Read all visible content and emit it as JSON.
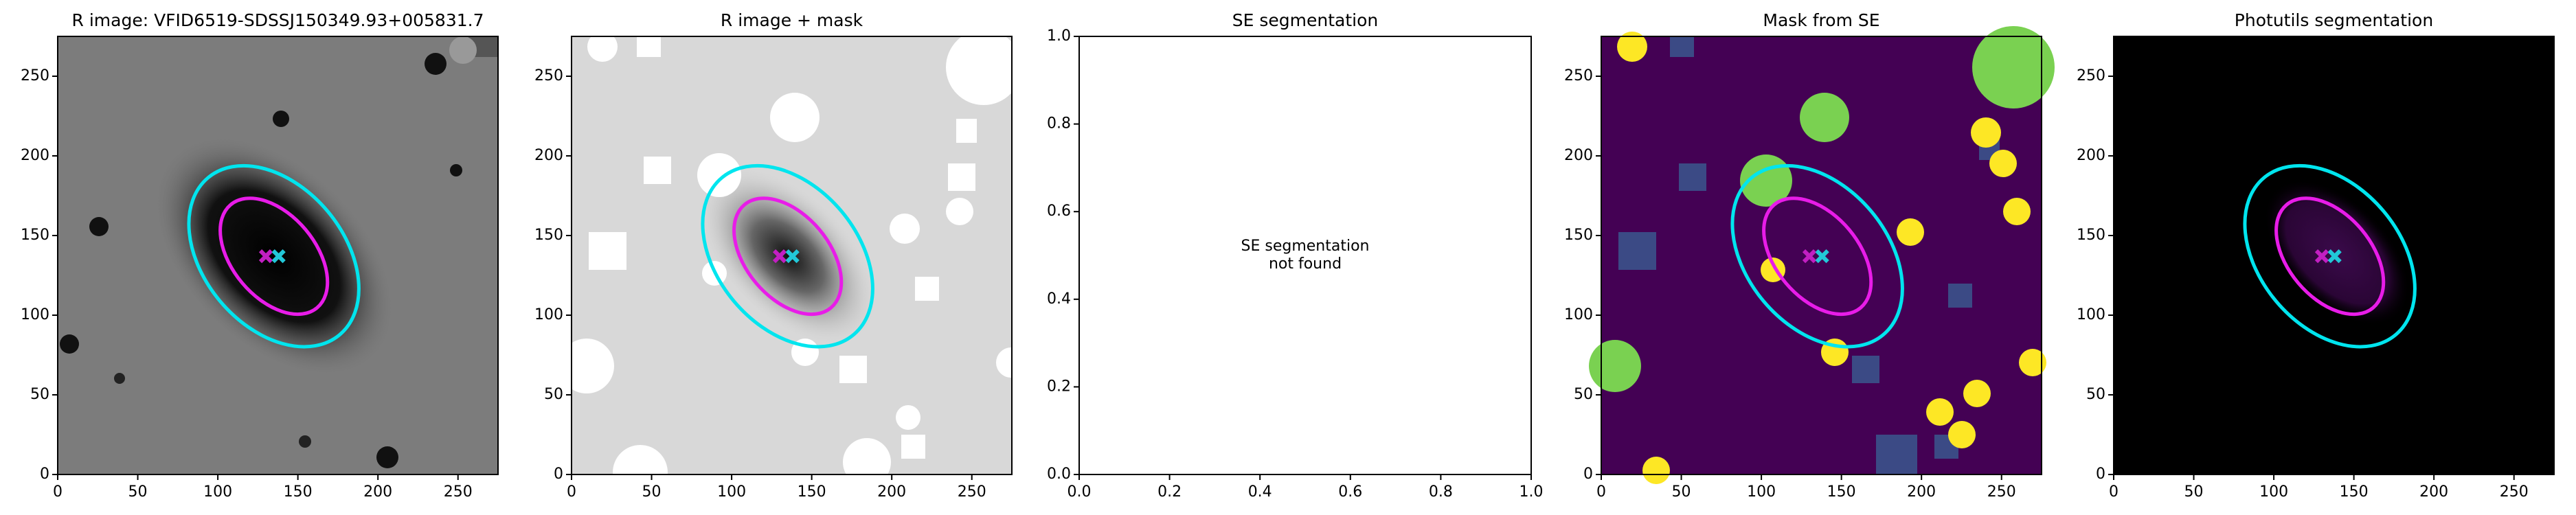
{
  "chart_data": [
    {
      "type": "image",
      "title": "R image: VFID6519-SDSSJ150349.93+005831.7",
      "xlim": [
        0,
        275
      ],
      "ylim": [
        0,
        275
      ],
      "xticks": [
        0,
        50,
        100,
        150,
        200,
        250
      ],
      "yticks": [
        0,
        50,
        100,
        150,
        200,
        250
      ],
      "ellipses": [
        {
          "x": 135,
          "y": 137,
          "semi_major": 64,
          "semi_minor": 44,
          "angle": -50,
          "color": "#00e5ee"
        },
        {
          "x": 135,
          "y": 137,
          "semi_major": 42,
          "semi_minor": 26,
          "angle": -50,
          "color": "#e81ce8"
        }
      ],
      "markers": [
        {
          "x": 130,
          "y": 137,
          "color": "#c21fc2"
        },
        {
          "x": 138,
          "y": 137,
          "color": "#22c8d8"
        }
      ]
    },
    {
      "type": "image",
      "title": "R image + mask",
      "xlim": [
        0,
        275
      ],
      "ylim": [
        0,
        275
      ],
      "xticks": [
        0,
        50,
        100,
        150,
        200,
        250
      ],
      "yticks": [
        0,
        50,
        100,
        150,
        200,
        250
      ],
      "ellipses": [
        {
          "x": 135,
          "y": 137,
          "semi_major": 64,
          "semi_minor": 44,
          "angle": -50,
          "color": "#00e5ee"
        },
        {
          "x": 135,
          "y": 137,
          "semi_major": 42,
          "semi_minor": 26,
          "angle": -50,
          "color": "#e81ce8"
        }
      ],
      "markers": [
        {
          "x": 130,
          "y": 137,
          "color": "#c21fc2"
        },
        {
          "x": 138,
          "y": 137,
          "color": "#22c8d8"
        }
      ]
    },
    {
      "type": "text",
      "title": "SE segmentation",
      "annotation": [
        "SE segmentation",
        "not found"
      ],
      "xlim": [
        0,
        1
      ],
      "ylim": [
        0,
        1
      ],
      "xticks": [
        {
          "value": 0,
          "label": "0.0"
        },
        {
          "value": 0.2,
          "label": "0.2"
        },
        {
          "value": 0.4,
          "label": "0.4"
        },
        {
          "value": 0.6,
          "label": "0.6"
        },
        {
          "value": 0.8,
          "label": "0.8"
        },
        {
          "value": 1,
          "label": "1.0"
        }
      ],
      "yticks": [
        {
          "value": 0,
          "label": "0.0"
        },
        {
          "value": 0.2,
          "label": "0.2"
        },
        {
          "value": 0.4,
          "label": "0.4"
        },
        {
          "value": 0.6,
          "label": "0.6"
        },
        {
          "value": 0.8,
          "label": "0.8"
        },
        {
          "value": 1,
          "label": "1.0"
        }
      ]
    },
    {
      "type": "image",
      "title": "Mask from SE",
      "xlim": [
        0,
        275
      ],
      "ylim": [
        0,
        275
      ],
      "xticks": [
        0,
        50,
        100,
        150,
        200,
        250
      ],
      "yticks": [
        0,
        50,
        100,
        150,
        200,
        250
      ],
      "ellipses": [
        {
          "x": 135,
          "y": 137,
          "semi_major": 64,
          "semi_minor": 44,
          "angle": -50,
          "color": "#00e5ee"
        },
        {
          "x": 135,
          "y": 137,
          "semi_major": 42,
          "semi_minor": 26,
          "angle": -50,
          "color": "#e81ce8"
        }
      ],
      "markers": [
        {
          "x": 130,
          "y": 137,
          "color": "#c21fc2"
        },
        {
          "x": 138,
          "y": 137,
          "color": "#22c8d8"
        }
      ]
    },
    {
      "type": "image",
      "title": "Photutils segmentation",
      "xlim": [
        0,
        275
      ],
      "ylim": [
        0,
        275
      ],
      "xticks": [
        0,
        50,
        100,
        150,
        200,
        250
      ],
      "yticks": [
        0,
        50,
        100,
        150,
        200,
        250
      ],
      "ellipses": [
        {
          "x": 135,
          "y": 137,
          "semi_major": 64,
          "semi_minor": 44,
          "angle": -50,
          "color": "#00e5ee"
        },
        {
          "x": 135,
          "y": 137,
          "semi_major": 42,
          "semi_minor": 26,
          "angle": -50,
          "color": "#e81ce8"
        }
      ],
      "markers": [
        {
          "x": 130,
          "y": 137,
          "color": "#c21fc2"
        },
        {
          "x": 138,
          "y": 137,
          "color": "#22c8d8"
        }
      ]
    }
  ]
}
